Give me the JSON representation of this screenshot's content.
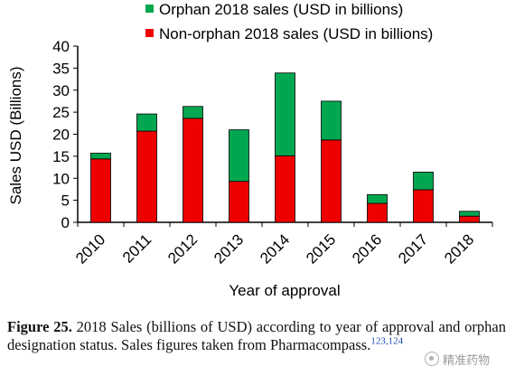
{
  "chart_data": {
    "type": "bar",
    "stacked": true,
    "categories": [
      "2010",
      "2011",
      "2012",
      "2013",
      "2014",
      "2015",
      "2016",
      "2017",
      "2018"
    ],
    "series": [
      {
        "name": "Non-orphan 2018 sales (USD in billions)",
        "color": "#ee0000",
        "values": [
          14.4,
          20.7,
          23.6,
          9.3,
          15.1,
          18.7,
          4.3,
          7.4,
          1.4
        ]
      },
      {
        "name": "Orphan 2018 sales (USD in billions)",
        "color": "#00a650",
        "values": [
          1.3,
          3.9,
          2.7,
          11.7,
          18.8,
          8.8,
          2.0,
          4.0,
          1.1
        ]
      }
    ],
    "title": "",
    "xlabel": "Year of approval",
    "ylabel": "Sales USD (Billions)",
    "ylim": [
      0,
      40
    ],
    "yticks": [
      0,
      5,
      10,
      15,
      20,
      25,
      30,
      35,
      40
    ],
    "grid": false,
    "legend_position": "top",
    "bar_outline_color": "#000000"
  },
  "caption": {
    "label": "Figure 25.",
    "text": " 2018 Sales (billions of USD) according to year of approval and orphan designation status. Sales figures taken from Pharmacompass.",
    "refs": "123,124"
  },
  "watermark": {
    "text": "精准药物",
    "icon": "wechat-icon"
  }
}
